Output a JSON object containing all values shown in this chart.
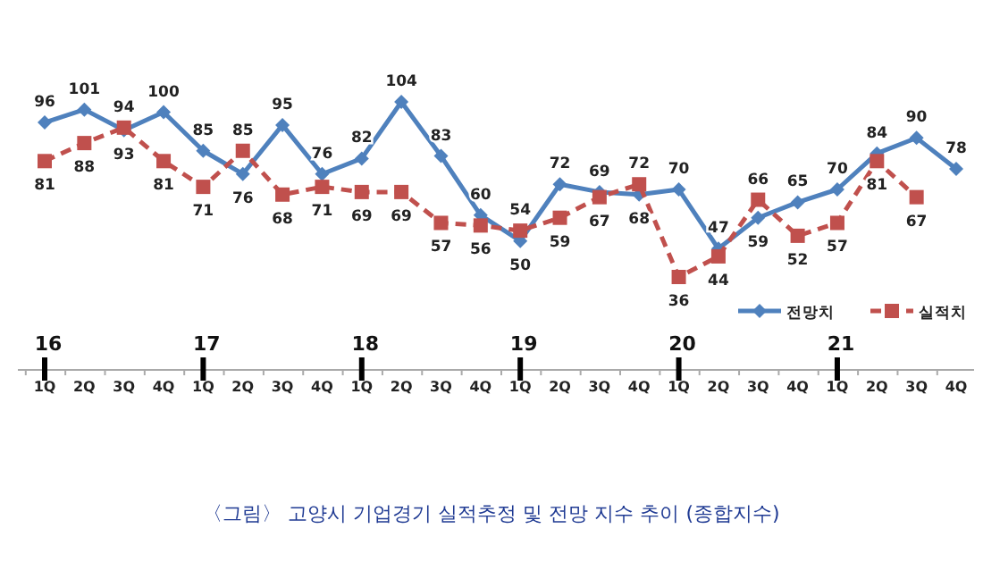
{
  "chart_data": {
    "type": "line",
    "title": "〈그림〉 고양시 기업경기 실적추정 및 전망 지수 추이 (종합지수)",
    "categories": [
      "1Q",
      "2Q",
      "3Q",
      "4Q",
      "1Q",
      "2Q",
      "3Q",
      "4Q",
      "1Q",
      "2Q",
      "3Q",
      "4Q",
      "1Q",
      "2Q",
      "3Q",
      "4Q",
      "1Q",
      "2Q",
      "3Q",
      "4Q",
      "1Q",
      "2Q",
      "3Q",
      "4Q"
    ],
    "annotations": [
      "16",
      "17",
      "18",
      "19",
      "20",
      "21"
    ],
    "series": [
      {
        "name": "전망치",
        "color": "#4f81bd",
        "marker": "diamond",
        "line_style": "solid",
        "values": [
          96,
          101,
          93,
          100,
          85,
          76,
          95,
          76,
          82,
          104,
          83,
          60,
          50,
          72,
          69,
          68,
          70,
          47,
          59,
          65,
          70,
          84,
          90,
          78
        ]
      },
      {
        "name": "실적치",
        "color": "#c0504d",
        "marker": "square",
        "line_style": "dashed",
        "values": [
          81,
          88,
          94,
          81,
          71,
          85,
          68,
          71,
          69,
          69,
          57,
          56,
          54,
          59,
          67,
          72,
          36,
          44,
          66,
          52,
          57,
          81,
          67,
          null
        ]
      }
    ],
    "data_labels": true,
    "legend": "bottom right"
  }
}
